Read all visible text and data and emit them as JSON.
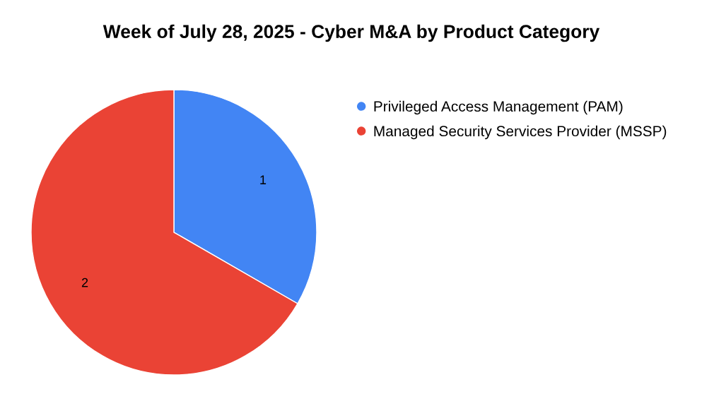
{
  "chart_data": {
    "type": "pie",
    "title": "Week of July 28, 2025 - Cyber M&A by Product Category",
    "categories": [
      "Privileged Access Management (PAM)",
      "Managed Security Services Provider (MSSP)"
    ],
    "values": [
      1,
      2
    ],
    "colors": [
      "#4285f4",
      "#ea4335"
    ],
    "data_labels": true,
    "legend": "right"
  }
}
